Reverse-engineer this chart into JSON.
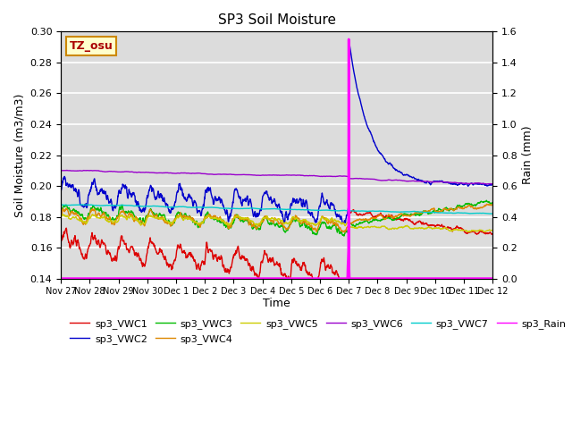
{
  "title": "SP3 Soil Moisture",
  "ylabel_left": "Soil Moisture (m3/m3)",
  "ylabel_right": "Rain (mm)",
  "xlabel": "Time",
  "timezone_label": "TZ_osu",
  "ylim_left": [
    0.14,
    0.3
  ],
  "ylim_right": [
    0.0,
    1.6
  ],
  "background_color": "#dcdcdc",
  "series_colors": {
    "sp3_VWC1": "#dd0000",
    "sp3_VWC2": "#0000cc",
    "sp3_VWC3": "#00bb00",
    "sp3_VWC4": "#dd8800",
    "sp3_VWC5": "#cccc00",
    "sp3_VWC6": "#9900cc",
    "sp3_VWC7": "#00cccc",
    "sp3_Rain": "#ff00ff"
  },
  "n_points": 1440,
  "rain_event_idx": 960,
  "rain_peak": 1.55,
  "x_ticks": [
    "Nov 27",
    "Nov 28",
    "Nov 29",
    "Nov 30",
    "Dec 1",
    "Dec 2",
    "Dec 3",
    "Dec 4",
    "Dec 5",
    "Dec 6",
    "Dec 7",
    "Dec 8",
    "Dec 9",
    "Dec 10",
    "Dec 11",
    "Dec 12"
  ],
  "x_tick_positions": [
    0,
    96,
    192,
    288,
    384,
    480,
    576,
    672,
    768,
    864,
    960,
    1056,
    1152,
    1248,
    1344,
    1440
  ]
}
